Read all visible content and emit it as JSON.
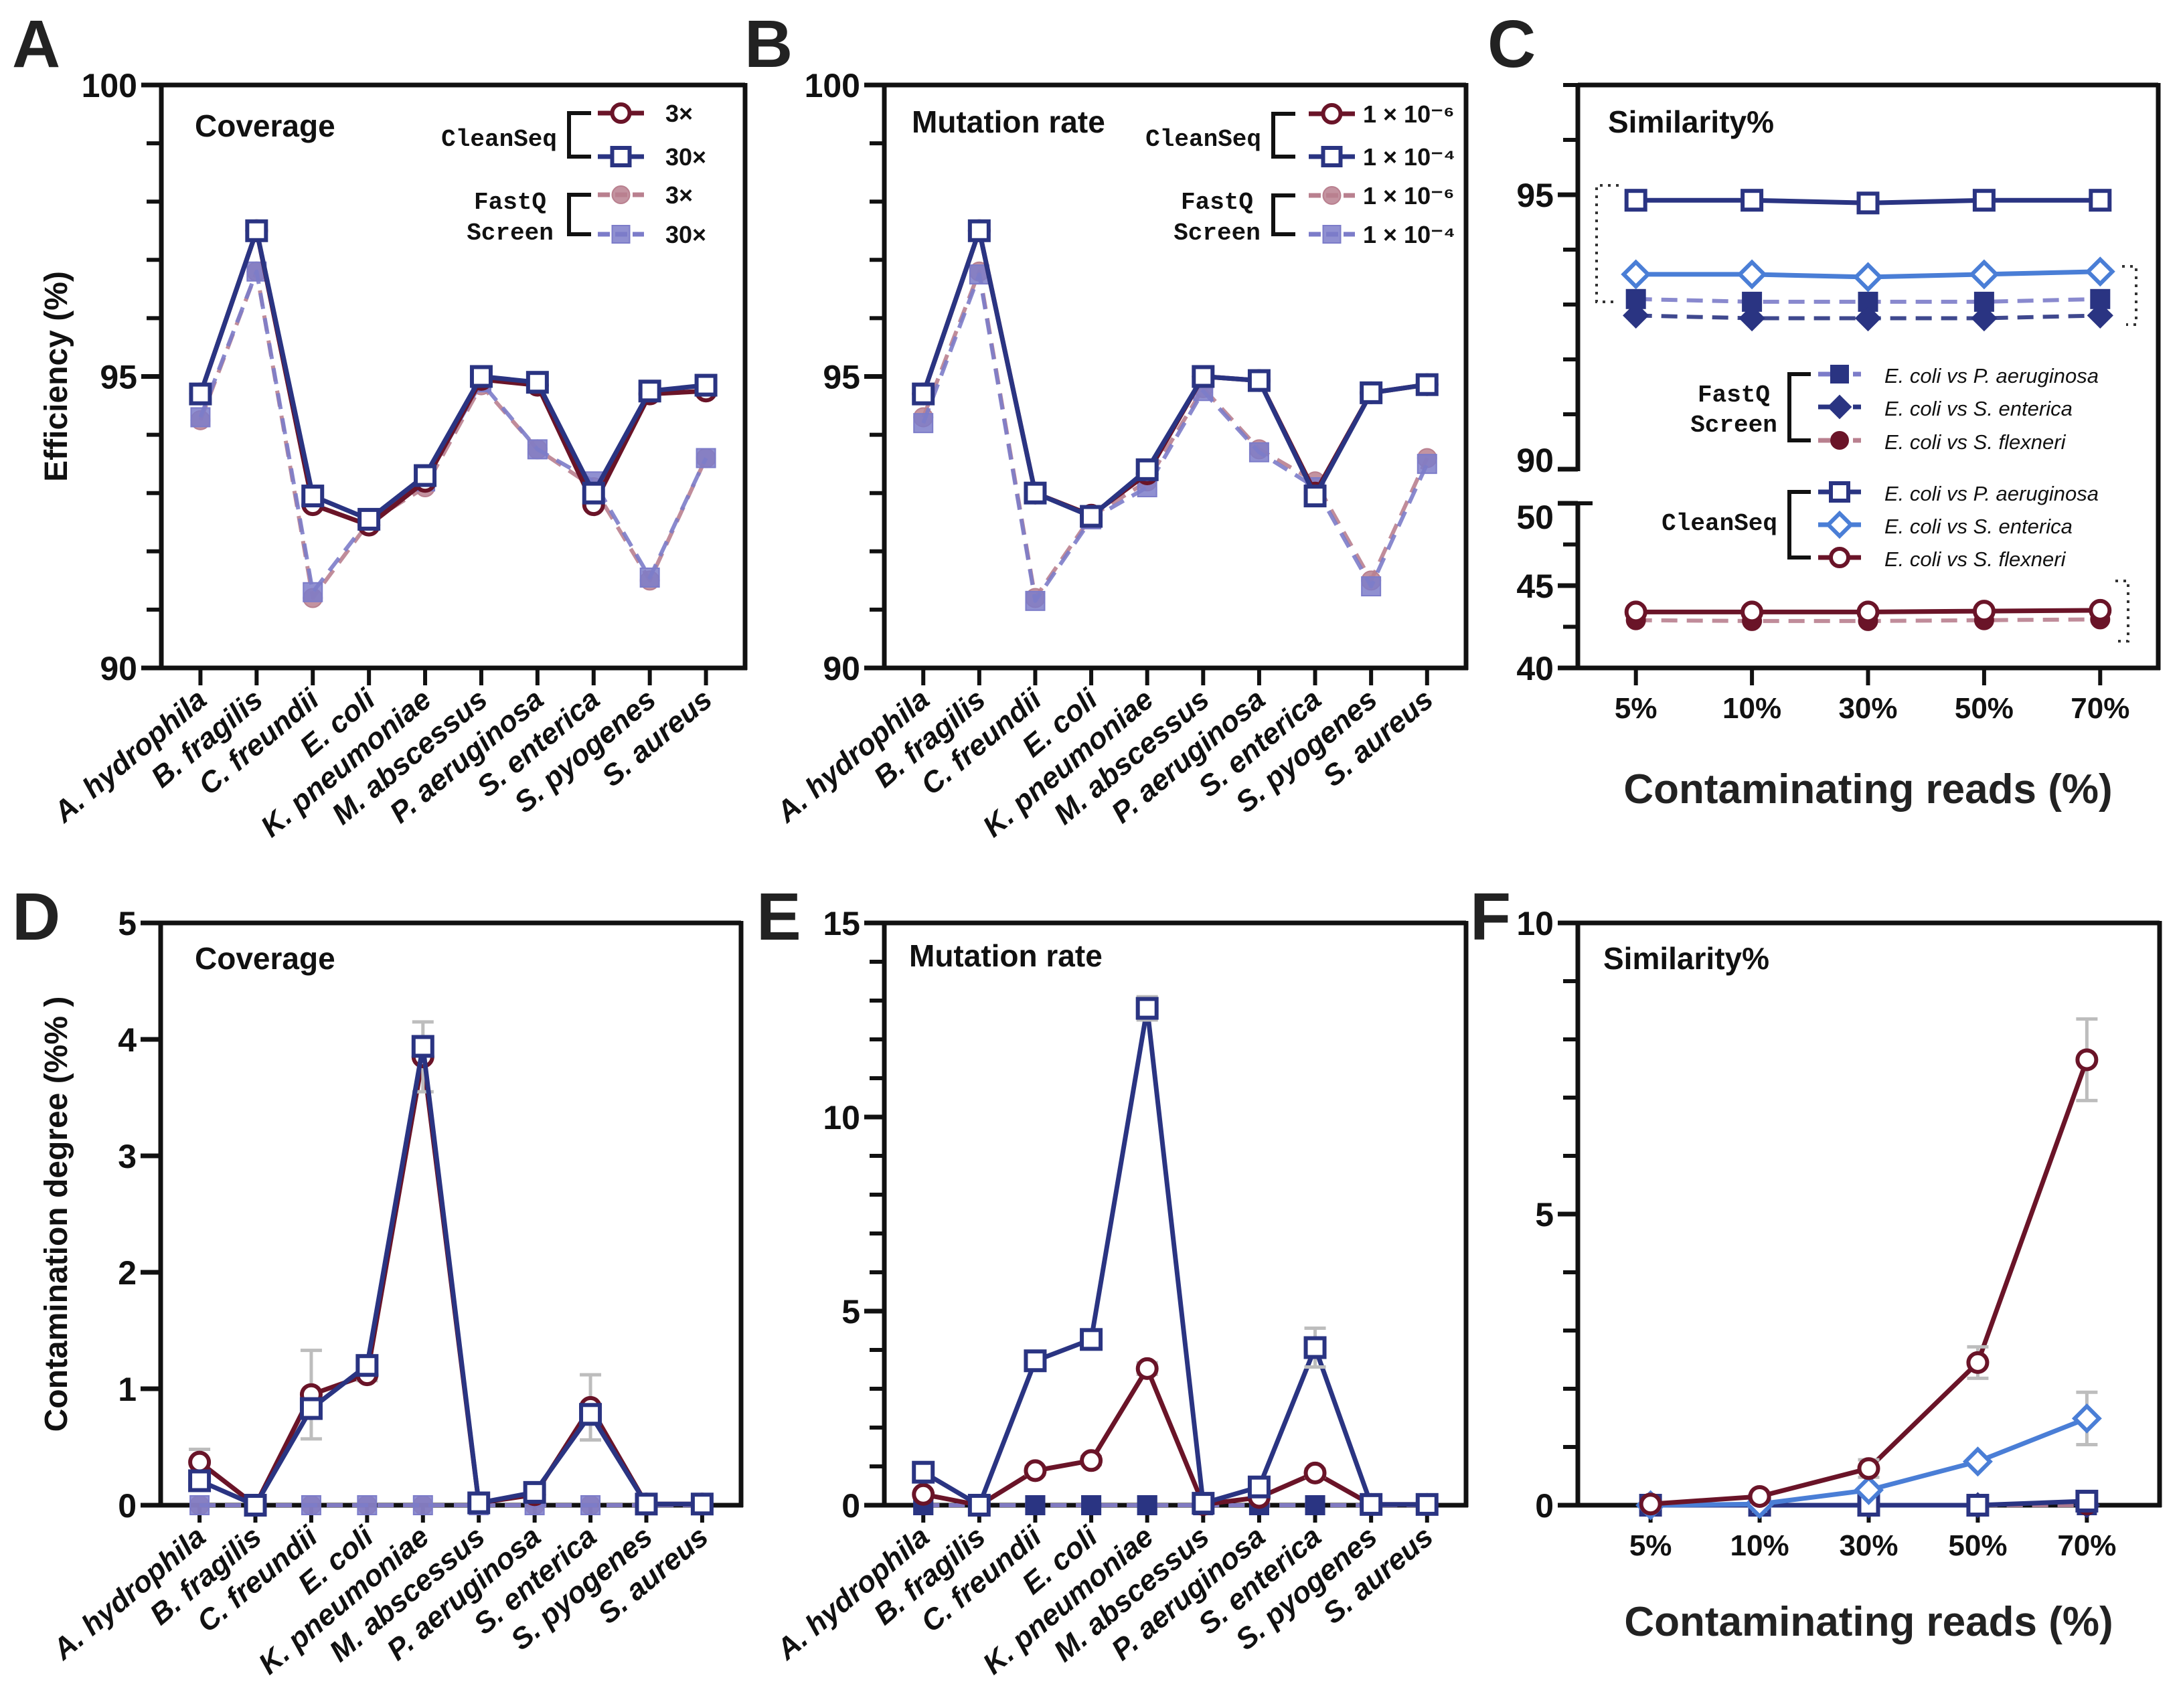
{
  "colors": {
    "navy": "#2a3482",
    "light_blue": "#4a7ed6",
    "lavender": "#7c7cc9",
    "maroon": "#6a1428",
    "pink": "#b9808f",
    "error_bar": "#bdbdbd",
    "axis": "#111111"
  },
  "chart_data": [
    {
      "panel": "A",
      "type": "line",
      "title": "Coverage",
      "ylabel": "Efficiency (%)",
      "xlabel": "",
      "categories": [
        "A. hydrophila",
        "B. fragilis",
        "C. freundii",
        "E. coli",
        "K. pneumoniae",
        "M. abscessus",
        "P. aeruginosa",
        "S. enterica",
        "S. pyogenes",
        "S. aureus"
      ],
      "ylim": [
        90,
        100
      ],
      "yticks": [
        90,
        95,
        100
      ],
      "yminor": 1,
      "series": [
        {
          "group": "FastQ Screen",
          "name": "3×",
          "color": "#b9808f",
          "marker_color": "#b9808f",
          "marker": "filled-circle",
          "dash": true,
          "values": [
            94.25,
            96.8,
            91.2,
            92.5,
            93.1,
            94.85,
            93.75,
            93.1,
            91.5,
            93.6
          ]
        },
        {
          "group": "FastQ Screen",
          "name": "30×",
          "color": "#7c7cc9",
          "marker_color": "#7c7cc9",
          "marker": "filled-square",
          "dash": true,
          "values": [
            94.3,
            96.8,
            91.3,
            92.55,
            93.2,
            94.9,
            93.75,
            93.2,
            91.55,
            93.6
          ]
        },
        {
          "group": "CleanSeq",
          "name": "3×",
          "color": "#6a1428",
          "marker_color": "#6a1428",
          "marker": "open-circle",
          "dash": false,
          "values": [
            94.7,
            97.5,
            92.8,
            92.45,
            93.2,
            94.95,
            94.85,
            92.8,
            94.7,
            94.75
          ]
        },
        {
          "group": "CleanSeq",
          "name": "30×",
          "color": "#2a3482",
          "marker_color": "#2a3482",
          "marker": "open-square",
          "dash": false,
          "values": [
            94.7,
            97.5,
            92.95,
            92.55,
            93.3,
            95.0,
            94.9,
            93.0,
            94.75,
            94.85
          ]
        }
      ],
      "legend": {
        "placement": "top-right",
        "groups": [
          {
            "label": "CleanSeq",
            "series": [
              2,
              3
            ]
          },
          {
            "label": "FastQ Screen",
            "series": [
              0,
              1
            ]
          }
        ]
      }
    },
    {
      "panel": "B",
      "type": "line",
      "title": "Mutation rate",
      "ylabel": "",
      "xlabel": "",
      "categories": [
        "A. hydrophila",
        "B. fragilis",
        "C. freundii",
        "E. coli",
        "K. pneumoniae",
        "M. abscessus",
        "P. aeruginosa",
        "S. enterica",
        "S. pyogenes",
        "S. aureus"
      ],
      "ylim": [
        90,
        100
      ],
      "yticks": [
        90,
        95,
        100
      ],
      "yminor": 1,
      "series": [
        {
          "group": "FastQ Screen",
          "name": "1 × 10⁻⁶",
          "color": "#b9808f",
          "marker_color": "#b9808f",
          "marker": "filled-circle",
          "dash": true,
          "values": [
            94.3,
            96.8,
            91.2,
            92.6,
            93.2,
            94.8,
            93.75,
            93.2,
            91.5,
            93.6
          ]
        },
        {
          "group": "FastQ Screen",
          "name": "1 × 10⁻⁴",
          "color": "#7c7cc9",
          "marker_color": "#7c7cc9",
          "marker": "filled-square",
          "dash": true,
          "values": [
            94.2,
            96.75,
            91.15,
            92.55,
            93.1,
            94.75,
            93.7,
            93.1,
            91.4,
            93.5
          ]
        },
        {
          "group": "CleanSeq",
          "name": "1 × 10⁻⁶",
          "color": "#6a1428",
          "marker_color": "#6a1428",
          "marker": "open-circle",
          "dash": false,
          "values": [
            94.7,
            97.5,
            93.0,
            92.62,
            93.33,
            95.0,
            94.93,
            93.0,
            94.72,
            94.86
          ]
        },
        {
          "group": "CleanSeq",
          "name": "1 × 10⁻⁴",
          "color": "#2a3482",
          "marker_color": "#2a3482",
          "marker": "open-square",
          "dash": false,
          "values": [
            94.7,
            97.5,
            93.0,
            92.6,
            93.4,
            95.0,
            94.93,
            92.95,
            94.72,
            94.86
          ]
        }
      ],
      "legend": {
        "placement": "top-right",
        "groups": [
          {
            "label": "CleanSeq",
            "series": [
              2,
              3
            ]
          },
          {
            "label": "FastQ Screen",
            "series": [
              0,
              1
            ]
          }
        ]
      }
    },
    {
      "panel": "C",
      "type": "line",
      "title": "Similarity%",
      "ylabel": "",
      "xlabel": "Contaminating reads (%)",
      "categories": [
        "5%",
        "10%",
        "30%",
        "50%",
        "70%"
      ],
      "y_segments": [
        {
          "ylim": [
            40,
            50
          ],
          "yticks": [
            40,
            45,
            50
          ],
          "yminor": 2.5
        },
        {
          "ylim": [
            90,
            97
          ],
          "yticks": [
            90,
            95
          ],
          "yminor": 1
        }
      ],
      "series": [
        {
          "group": "FastQ Screen",
          "name": "E. coli vs P. aeruginosa",
          "color": "#7c7cc9",
          "marker_color": "#2a3482",
          "marker": "filled-square",
          "dash": true,
          "values": [
            93.1,
            93.05,
            93.05,
            93.05,
            93.1
          ]
        },
        {
          "group": "FastQ Screen",
          "name": "E. coli vs S. enterica",
          "color": "#2a3482",
          "marker_color": "#2a3482",
          "marker": "filled-diamond",
          "dash": true,
          "values": [
            92.8,
            92.75,
            92.75,
            92.75,
            92.8
          ]
        },
        {
          "group": "FastQ Screen",
          "name": "E. coli vs S. flexneri",
          "color": "#b9808f",
          "marker_color": "#6a1428",
          "marker": "filled-circle",
          "dash": true,
          "values": [
            42.9,
            42.85,
            42.85,
            42.9,
            42.95
          ]
        },
        {
          "group": "CleanSeq",
          "name": "E. coli vs P. aeruginosa",
          "color": "#2a3482",
          "marker_color": "#2a3482",
          "marker": "open-square",
          "dash": false,
          "values": [
            94.9,
            94.9,
            94.85,
            94.9,
            94.9
          ]
        },
        {
          "group": "CleanSeq",
          "name": "E. coli vs S. enterica",
          "color": "#4a7ed6",
          "marker_color": "#4a7ed6",
          "marker": "open-diamond",
          "dash": false,
          "values": [
            93.55,
            93.55,
            93.5,
            93.55,
            93.6
          ]
        },
        {
          "group": "CleanSeq",
          "name": "E. coli vs S. flexneri",
          "color": "#6a1428",
          "marker_color": "#6a1428",
          "marker": "open-circle",
          "dash": false,
          "values": [
            43.4,
            43.4,
            43.4,
            43.45,
            43.5
          ]
        }
      ],
      "legend": {
        "placement": "center",
        "groups": [
          {
            "label": "FastQ Screen",
            "series": [
              0,
              1,
              2
            ]
          },
          {
            "label": "CleanSeq",
            "series": [
              3,
              4,
              5
            ]
          }
        ]
      }
    },
    {
      "panel": "D",
      "type": "line",
      "title": "Coverage",
      "ylabel": "Contamination degree (%% )",
      "xlabel": "",
      "categories": [
        "A. hydrophila",
        "B. fragilis",
        "C. freundii",
        "E. coli",
        "K. pneumoniae",
        "M. abscessus",
        "P. aeruginosa",
        "S. enterica",
        "S. pyogenes",
        "S. aureus"
      ],
      "ylim": [
        0,
        5
      ],
      "yticks": [
        0,
        1,
        2,
        3,
        4,
        5
      ],
      "yminor": 1,
      "series": [
        {
          "group": "FastQ Screen",
          "name": "3×",
          "color": "#b9808f",
          "marker_color": "#b9808f",
          "marker": "filled-circle",
          "dash": true,
          "values": [
            0,
            0,
            0,
            0,
            0,
            0,
            0,
            0,
            0,
            0
          ]
        },
        {
          "group": "FastQ Screen",
          "name": "30×",
          "color": "#7c7cc9",
          "marker_color": "#7c7cc9",
          "marker": "filled-square",
          "dash": true,
          "values": [
            0,
            0,
            0,
            0,
            0,
            0,
            0,
            0,
            0,
            0
          ]
        },
        {
          "group": "CleanSeq",
          "name": "3×",
          "color": "#6a1428",
          "marker_color": "#6a1428",
          "marker": "open-circle",
          "dash": false,
          "values": [
            0.37,
            0,
            0.95,
            1.12,
            3.85,
            0.02,
            0.09,
            0.84,
            0.01,
            0.01
          ],
          "error": [
            0.11,
            0,
            0.38,
            0.05,
            0.3,
            0,
            0.02,
            0.28,
            0,
            0
          ]
        },
        {
          "group": "CleanSeq",
          "name": "30×",
          "color": "#2a3482",
          "marker_color": "#2a3482",
          "marker": "open-square",
          "dash": false,
          "values": [
            0.21,
            0,
            0.83,
            1.2,
            3.94,
            0.02,
            0.11,
            0.78,
            0.01,
            0.01
          ]
        }
      ]
    },
    {
      "panel": "E",
      "type": "line",
      "title": "Mutation rate",
      "ylabel": "",
      "xlabel": "",
      "categories": [
        "A. hydrophila",
        "B. fragilis",
        "C. freundii",
        "E. coli",
        "K. pneumoniae",
        "M. abscessus",
        "P. aeruginosa",
        "S. enterica",
        "S. pyogenes",
        "S. aureus"
      ],
      "ylim": [
        0,
        15
      ],
      "yticks": [
        0,
        5,
        10,
        15
      ],
      "yminor": 1,
      "series": [
        {
          "group": "FastQ Screen",
          "name": "1 × 10⁻⁶",
          "color": "#b9808f",
          "marker_color": "#2a3482",
          "marker": "filled-square",
          "dash": true,
          "values": [
            0,
            0,
            0,
            0,
            0,
            0,
            0,
            0,
            0,
            0
          ]
        },
        {
          "group": "FastQ Screen",
          "name": "1 × 10⁻⁴",
          "color": "#7c7cc9",
          "marker_color": "#2a3482",
          "marker": "filled-square",
          "dash": true,
          "values": [
            0,
            0,
            0,
            0,
            0,
            0,
            0,
            0,
            0,
            0
          ]
        },
        {
          "group": "CleanSeq",
          "name": "1 × 10⁻⁶",
          "color": "#6a1428",
          "marker_color": "#6a1428",
          "marker": "open-circle",
          "dash": false,
          "values": [
            0.28,
            0,
            0.89,
            1.15,
            3.52,
            0.02,
            0.2,
            0.83,
            0.02,
            0.02
          ],
          "error": [
            0,
            0,
            0.1,
            0.1,
            0.15,
            0,
            0,
            0.1,
            0,
            0
          ]
        },
        {
          "group": "CleanSeq",
          "name": "1 × 10⁻⁴",
          "color": "#2a3482",
          "marker_color": "#2a3482",
          "marker": "open-square",
          "dash": false,
          "values": [
            0.85,
            0,
            3.72,
            4.27,
            12.8,
            0.05,
            0.47,
            4.06,
            0.02,
            0.02
          ],
          "error": [
            0.1,
            0,
            0.15,
            0.1,
            0.3,
            0,
            0,
            0.5,
            0,
            0
          ]
        }
      ]
    },
    {
      "panel": "F",
      "type": "line",
      "title": "Similarity%",
      "ylabel": "",
      "xlabel": "Contaminating reads (%)",
      "categories": [
        "5%",
        "10%",
        "30%",
        "50%",
        "70%"
      ],
      "ylim": [
        0,
        10
      ],
      "yticks": [
        0,
        5,
        10
      ],
      "yminor": 1,
      "series": [
        {
          "group": "FastQ Screen",
          "name": "E. coli vs P. aeruginosa",
          "color": "#7c7cc9",
          "marker_color": "#2a3482",
          "marker": "filled-square",
          "dash": true,
          "values": [
            0,
            0,
            0,
            0,
            0
          ]
        },
        {
          "group": "FastQ Screen",
          "name": "E. coli vs S. enterica",
          "color": "#2a3482",
          "marker_color": "#2a3482",
          "marker": "filled-diamond",
          "dash": true,
          "values": [
            0,
            0,
            0,
            0,
            0
          ]
        },
        {
          "group": "FastQ Screen",
          "name": "E. coli vs S. flexneri",
          "color": "#b9808f",
          "marker_color": "#6a1428",
          "marker": "filled-circle",
          "dash": true,
          "values": [
            0,
            0,
            0,
            0,
            0
          ]
        },
        {
          "group": "CleanSeq",
          "name": "E. coli vs P. aeruginosa",
          "color": "#2a3482",
          "marker_color": "#2a3482",
          "marker": "open-square",
          "dash": false,
          "values": [
            0,
            0,
            0,
            0,
            0.07
          ]
        },
        {
          "group": "CleanSeq",
          "name": "E. coli vs S. enterica",
          "color": "#4a7ed6",
          "marker_color": "#4a7ed6",
          "marker": "open-diamond",
          "dash": false,
          "values": [
            0,
            0.02,
            0.26,
            0.75,
            1.49
          ],
          "error": [
            0,
            0,
            0.05,
            0.05,
            0.45
          ]
        },
        {
          "group": "CleanSeq",
          "name": "E. coli vs S. flexneri",
          "color": "#6a1428",
          "marker_color": "#6a1428",
          "marker": "open-circle",
          "dash": false,
          "values": [
            0.02,
            0.15,
            0.63,
            2.45,
            7.65
          ],
          "error": [
            0,
            0.02,
            0.15,
            0.27,
            0.7
          ]
        }
      ]
    }
  ]
}
